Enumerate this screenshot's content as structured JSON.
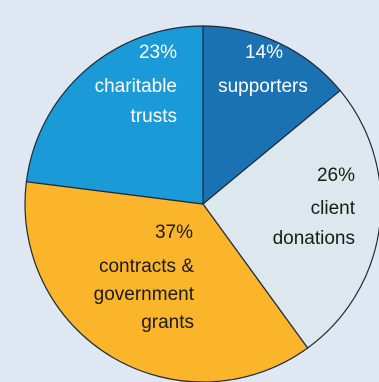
{
  "chart_data": {
    "type": "pie",
    "title": "",
    "slices": [
      {
        "label": "supporters",
        "value": 14,
        "display": "14%",
        "color": "#1a72b3",
        "text_color": "#ffffff"
      },
      {
        "label": "client donations",
        "value": 26,
        "display": "26%",
        "color": "#dce7ee",
        "text_color": "#1a1a1a"
      },
      {
        "label": "contracts & government grants",
        "value": 37,
        "display": "37%",
        "color": "#fbb52a",
        "text_color": "#1a1a1a"
      },
      {
        "label": "charitable trusts",
        "value": 23,
        "display": "23%",
        "color": "#1a9ad6",
        "text_color": "#ffffff"
      }
    ]
  }
}
